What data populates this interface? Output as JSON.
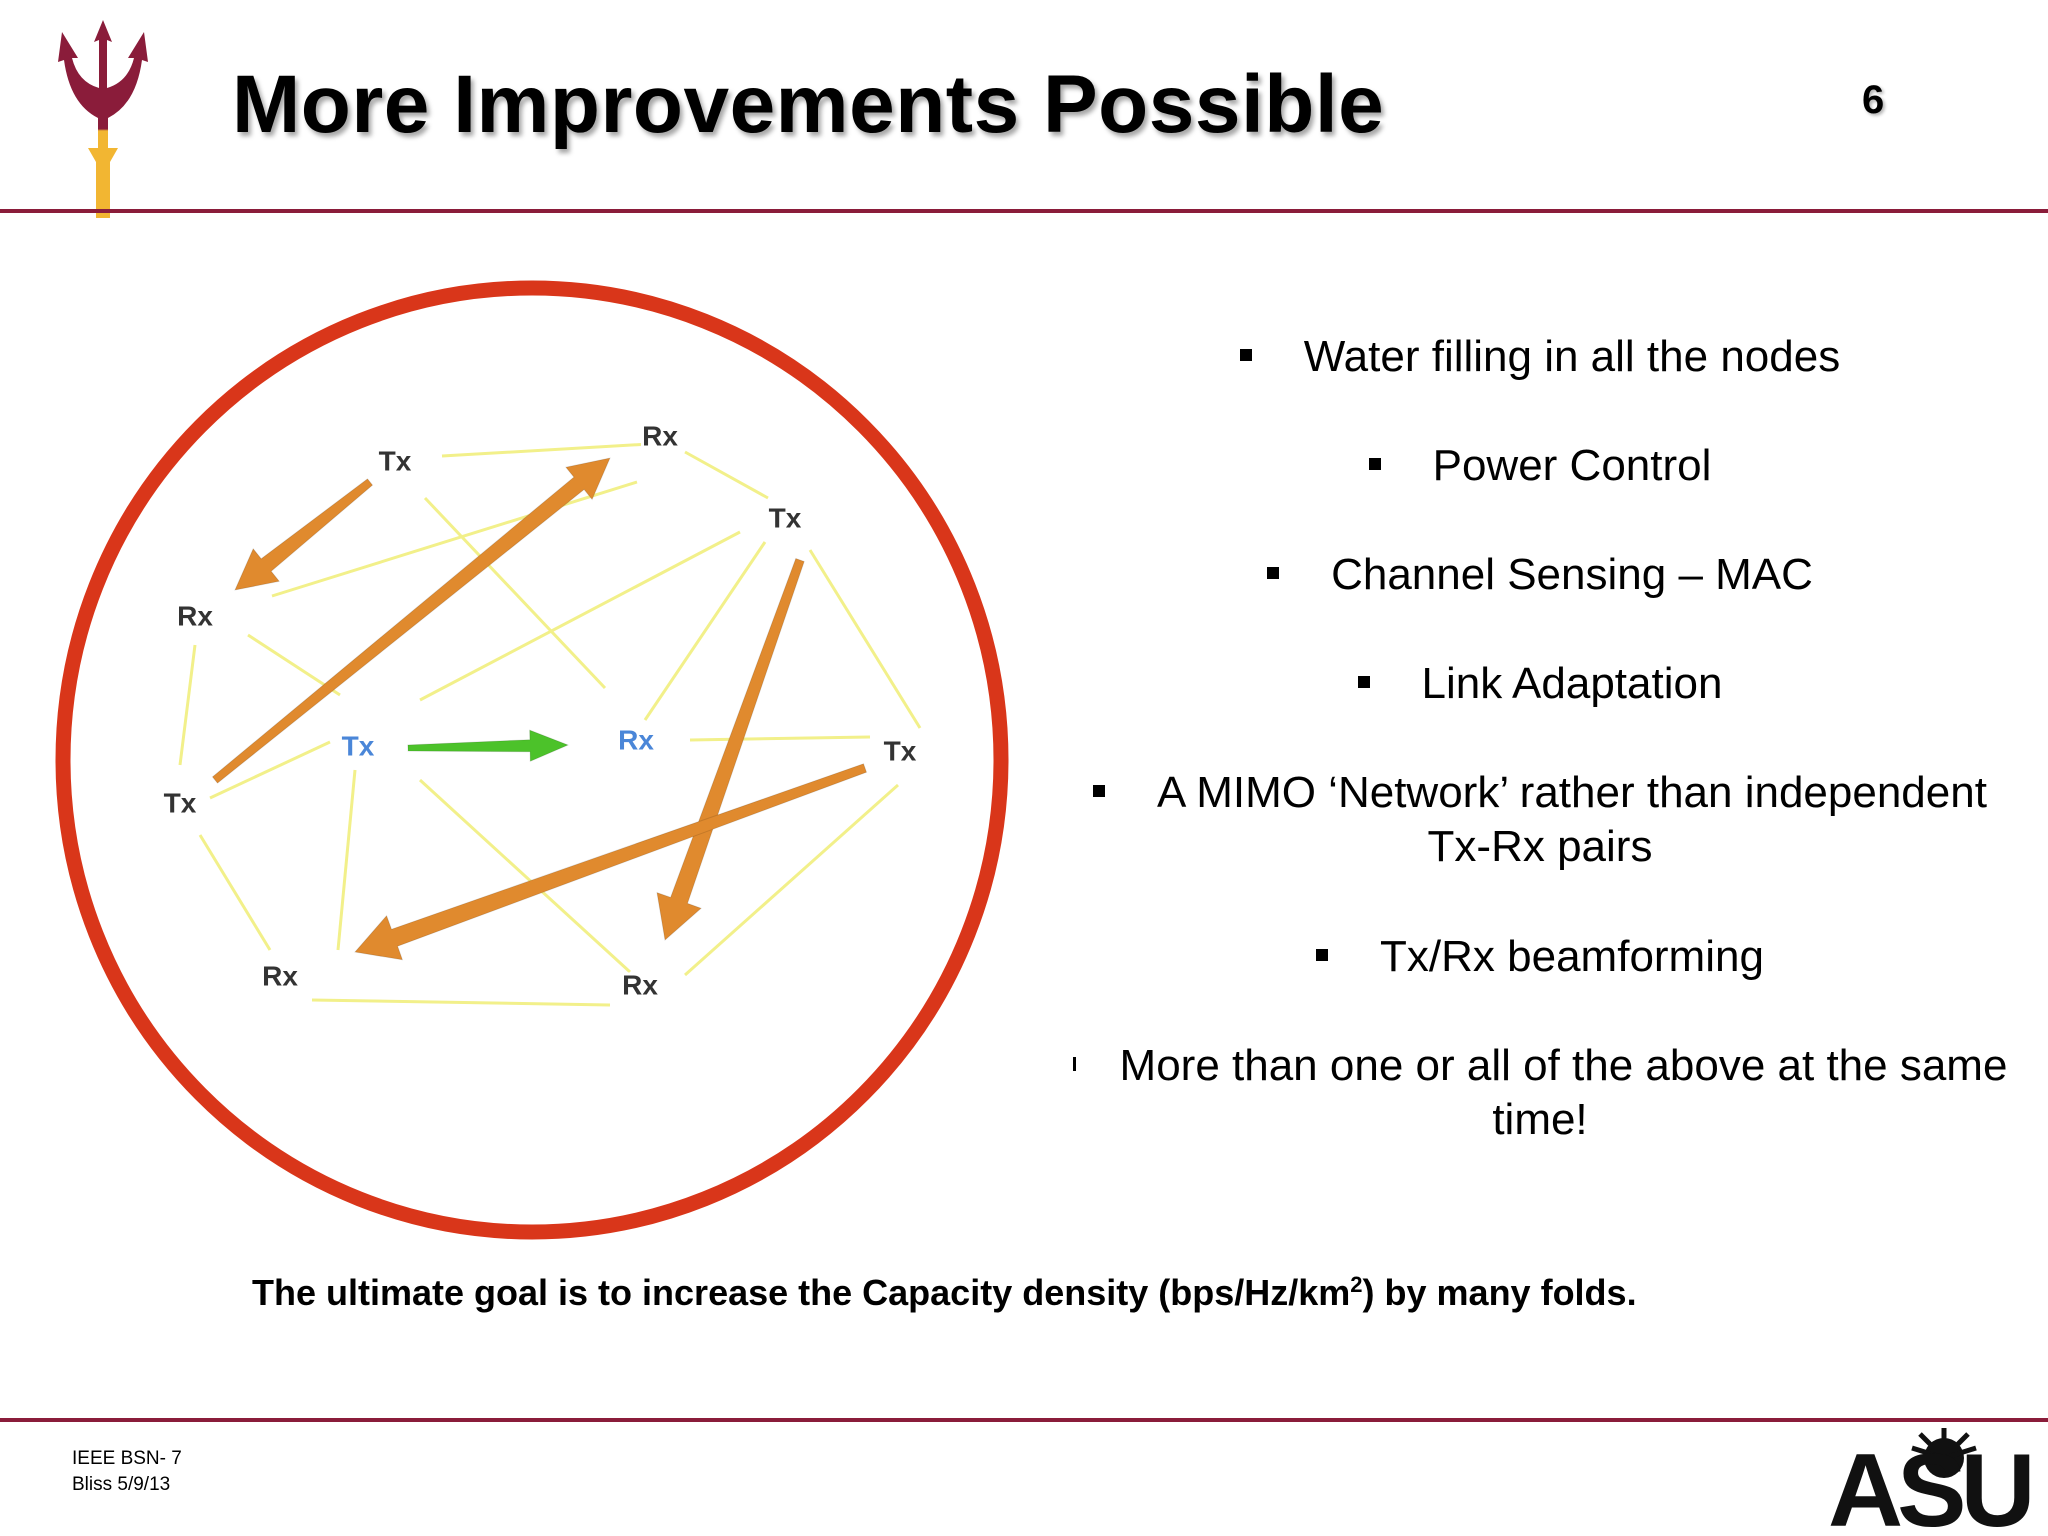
{
  "header": {
    "title": "More Improvements Possible",
    "slide_number": "6"
  },
  "diagram": {
    "nodes": [
      {
        "label": "Tx",
        "color": "#333333"
      },
      {
        "label": "Rx",
        "color": "#333333"
      },
      {
        "label": "Tx",
        "color": "#333333"
      },
      {
        "label": "Rx",
        "color": "#333333"
      },
      {
        "label": "Tx",
        "color": "#4a86d8"
      },
      {
        "label": "Rx",
        "color": "#4a86d8"
      },
      {
        "label": "Tx",
        "color": "#333333"
      },
      {
        "label": "Tx",
        "color": "#333333"
      },
      {
        "label": "Rx",
        "color": "#333333"
      },
      {
        "label": "Rx",
        "color": "#333333"
      }
    ],
    "colors": {
      "ring": "#d9361a",
      "link_lines": "#f2f08a",
      "interference_arrows": "#e08a2e",
      "primary_arrow": "#4cc22a"
    }
  },
  "bullets": [
    "Water filling in all the nodes",
    "Power Control",
    "Channel Sensing – MAC",
    "Link Adaptation",
    "A MIMO ‘Network’ rather than independent Tx-Rx pairs",
    "Tx/Rx beamforming",
    "More than one or all of the above at the same time!"
  ],
  "goal": {
    "text_before": "The ultimate goal is to increase the Capacity density (bps/Hz/km",
    "superscript": "2",
    "text_after": ") by many folds."
  },
  "footer": {
    "line1": "IEEE BSN- 7",
    "line2": "Bliss 5/9/13",
    "logo_text": "ASU"
  },
  "theme": {
    "maroon": "#8a1c3a",
    "gold": "#f2b632"
  }
}
